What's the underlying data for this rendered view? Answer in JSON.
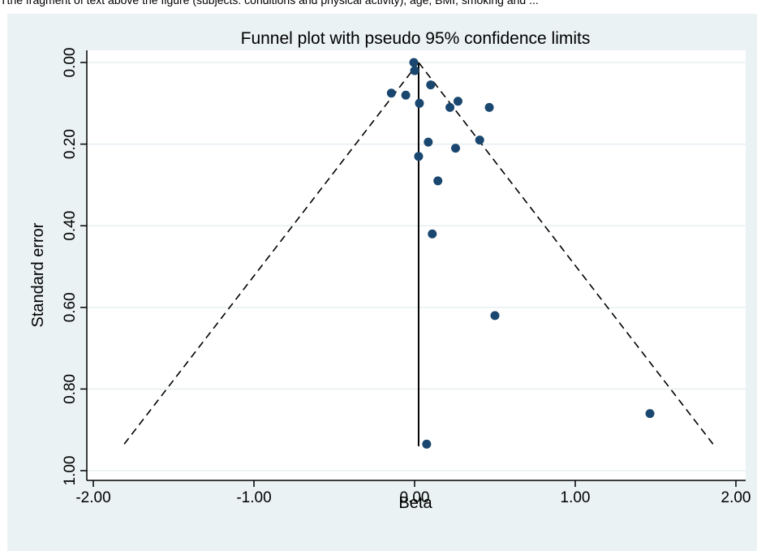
{
  "top_text": "Tthe fragment of text above the figure (subjects: conditions and physical activity), age, BMI, smoking and ...",
  "chart_data": {
    "type": "scatter",
    "title": "Funnel plot with pseudo 95% confidence limits",
    "xlabel": "Beta",
    "ylabel": "Standard error",
    "xlim": [
      -2.0,
      2.0
    ],
    "ylim": [
      0.0,
      1.0
    ],
    "y_reversed": true,
    "x_ticks": [
      "-2.00",
      "-1.00",
      "0.00",
      "1.00",
      "2.00"
    ],
    "x_tick_values": [
      -2.0,
      -1.0,
      0.0,
      1.0,
      2.0
    ],
    "y_ticks": [
      "0.00",
      "0.20",
      "0.40",
      "0.60",
      "0.80",
      "1.00"
    ],
    "y_tick_values": [
      0.0,
      0.2,
      0.4,
      0.6,
      0.8,
      1.0
    ],
    "grid": true,
    "pooled_estimate": 0.025,
    "pseudo_ci_max_se": 0.94,
    "points": [
      {
        "x": -0.005,
        "y": 0.0
      },
      {
        "x": 0.0,
        "y": 0.02
      },
      {
        "x": 0.1,
        "y": 0.055
      },
      {
        "x": -0.145,
        "y": 0.075
      },
      {
        "x": -0.055,
        "y": 0.08
      },
      {
        "x": 0.03,
        "y": 0.1
      },
      {
        "x": 0.22,
        "y": 0.11
      },
      {
        "x": 0.27,
        "y": 0.095
      },
      {
        "x": 0.465,
        "y": 0.11
      },
      {
        "x": 0.085,
        "y": 0.195
      },
      {
        "x": 0.255,
        "y": 0.21
      },
      {
        "x": 0.405,
        "y": 0.19
      },
      {
        "x": 0.025,
        "y": 0.23
      },
      {
        "x": 0.145,
        "y": 0.29
      },
      {
        "x": 0.11,
        "y": 0.42
      },
      {
        "x": 0.5,
        "y": 0.62
      },
      {
        "x": 1.465,
        "y": 0.86
      },
      {
        "x": 0.075,
        "y": 0.935
      }
    ],
    "colors": {
      "panel_background": "#eaf2f3",
      "plot_background": "#ffffff",
      "grid": "#e8eef0",
      "marker": "#1a476f",
      "line": "#000000"
    }
  }
}
